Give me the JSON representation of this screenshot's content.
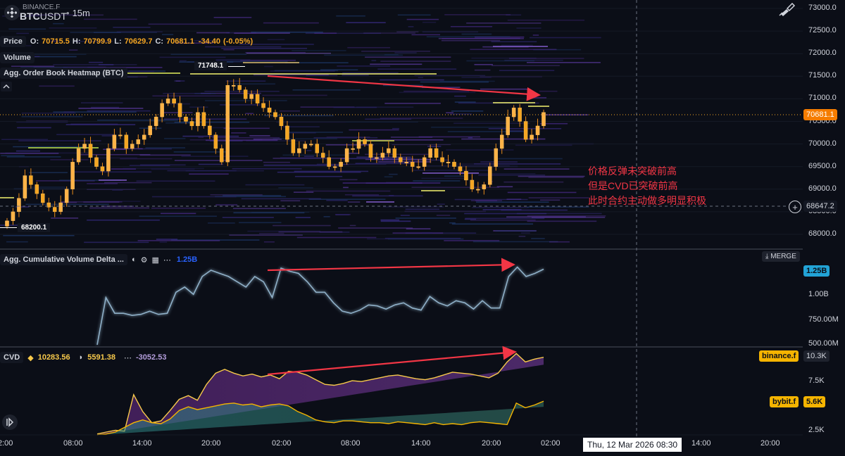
{
  "symbol": {
    "exchange": "BINANCE.F",
    "ticker_base": "BTC",
    "ticker_quote": "USDT",
    "interval": "15m",
    "dot": "•"
  },
  "ohlc": {
    "label": "Price",
    "o_label": "O:",
    "o": "70715.5",
    "h_label": "H:",
    "h": "70799.9",
    "l_label": "L:",
    "l": "70629.7",
    "c_label": "C:",
    "c": "70681.1",
    "change": "-34.40",
    "change_pct": "(-0.05%)"
  },
  "legend": {
    "volume": "Volume",
    "heatmap": "Agg. Order Book Heatmap (BTC)"
  },
  "price_markers": {
    "high": "71748.1",
    "low": "68200.1"
  },
  "price_axis": {
    "ticks": [
      "73000.0",
      "72500.0",
      "72000.0",
      "71500.0",
      "71000.0",
      "70500.0",
      "70000.0",
      "69500.0",
      "69000.0",
      "68500.0",
      "68000.0"
    ],
    "last_price": "70681.1",
    "crosshair_price": "68647.2",
    "plus_icon": "+"
  },
  "annotation": {
    "lines": [
      "价格反弹未突破前高",
      "但是CVD已突破前高",
      "此时合约主动做多明显积极"
    ]
  },
  "cvd_agg": {
    "title": "Agg. Cumulative Volume Delta ...",
    "value": "1.25B",
    "merge_label": "MERGE",
    "axis_ticks": [
      "1.00B",
      "750.00M",
      "500.00M"
    ],
    "last_value": "1.25B"
  },
  "cvd": {
    "title": "CVD",
    "v1": "10283.56",
    "v2": "5591.38",
    "v3": "-3052.53",
    "axis_ticks": [
      "7.5K",
      "5.0K",
      "2.5K"
    ],
    "binance_label": "binance.f",
    "binance_value": "10.3K",
    "bybit_label": "bybit.f",
    "bybit_value": "5.6K"
  },
  "time_axis": {
    "ticks": [
      "2:00",
      "08:00",
      "14:00",
      "20:00",
      "02:00",
      "08:00",
      "14:00",
      "20:00",
      "02:00",
      "14:00",
      "20:00"
    ],
    "crosshair_time": "Thu, 12 Mar 2026  08:30"
  },
  "colors": {
    "bg": "#0b0e17",
    "candle": "#f5a623",
    "arrow": "#f23645",
    "cvd_line": "#8fb0c8",
    "binance": "#f7c94b",
    "bybit": "#f5b400",
    "accent": "#2962ff"
  },
  "chart_data": [
    {
      "type": "candlestick",
      "panel": "price",
      "y_range": [
        68000,
        73000
      ],
      "close_series": [
        68300,
        68500,
        68800,
        69300,
        69100,
        68900,
        68700,
        68600,
        68500,
        68700,
        69000,
        69600,
        69900,
        70000,
        69700,
        69500,
        69400,
        69900,
        70200,
        70200,
        69900,
        70000,
        70100,
        70200,
        70400,
        70600,
        70900,
        71000,
        70900,
        70600,
        70500,
        70400,
        70700,
        70400,
        70200,
        69900,
        69600,
        71300,
        71300,
        71200,
        71000,
        71100,
        70900,
        70800,
        70700,
        70600,
        70400,
        70100,
        69800,
        69900,
        70000,
        70000,
        69800,
        69700,
        69500,
        69500,
        69600,
        69900,
        69900,
        70100,
        70000,
        69700,
        69700,
        69800,
        69900,
        69700,
        69600,
        69600,
        69500,
        69500,
        69700,
        69900,
        69700,
        69600,
        69600,
        69500,
        69400,
        69200,
        69000,
        69000,
        69100,
        69500,
        69900,
        70200,
        70600,
        70800,
        70500,
        70100,
        70200,
        70400,
        70700
      ]
    },
    {
      "type": "line",
      "panel": "agg_cvd",
      "y_range": [
        500000000,
        1300000000
      ],
      "values": [
        500000000,
        950000000,
        800000000,
        800000000,
        780000000,
        790000000,
        820000000,
        790000000,
        800000000,
        1000000000,
        1050000000,
        980000000,
        1150000000,
        1210000000,
        1180000000,
        1150000000,
        1100000000,
        1050000000,
        1150000000,
        1100000000,
        950000000,
        1230000000,
        1200000000,
        1180000000,
        1100000000,
        1000000000,
        1000000000,
        900000000,
        820000000,
        800000000,
        830000000,
        880000000,
        870000000,
        840000000,
        880000000,
        900000000,
        850000000,
        830000000,
        960000000,
        900000000,
        870000000,
        920000000,
        900000000,
        840000000,
        920000000,
        850000000,
        850000000,
        1150000000,
        1240000000,
        1150000000,
        1180000000,
        1220000000
      ]
    },
    {
      "type": "area",
      "panel": "cvd",
      "y_range": [
        2000,
        11000
      ],
      "series": [
        {
          "name": "binance.f",
          "values": [
            2100,
            2300,
            2500,
            2400,
            6300,
            4500,
            3300,
            3500,
            4600,
            5800,
            6200,
            5700,
            7400,
            8600,
            9000,
            8600,
            8300,
            8500,
            8200,
            8400,
            8000,
            8800,
            8700,
            8400,
            7900,
            7400,
            7300,
            7500,
            7800,
            7700,
            7900,
            8100,
            8300,
            8400,
            8200,
            8000,
            7900,
            8100,
            8400,
            8700,
            8600,
            8500,
            8300,
            8100,
            8600,
            9800,
            10700,
            9800,
            10100,
            10300
          ]
        },
        {
          "name": "bybit.f",
          "values": [
            2000,
            2100,
            2300,
            2800,
            3300,
            3600,
            3300,
            3200,
            3700,
            4600,
            5000,
            4700,
            4900,
            5100,
            5300,
            5400,
            5200,
            5300,
            5000,
            5200,
            5300,
            5100,
            4500,
            4100,
            3600,
            3400,
            3300,
            3500,
            3500,
            3400,
            3300,
            3300,
            3200,
            3400,
            3300,
            3200,
            3100,
            3300,
            3100,
            3200,
            3100,
            3300,
            3400,
            3300,
            3200,
            3100,
            5400,
            4900,
            5200,
            5600
          ]
        }
      ]
    }
  ]
}
